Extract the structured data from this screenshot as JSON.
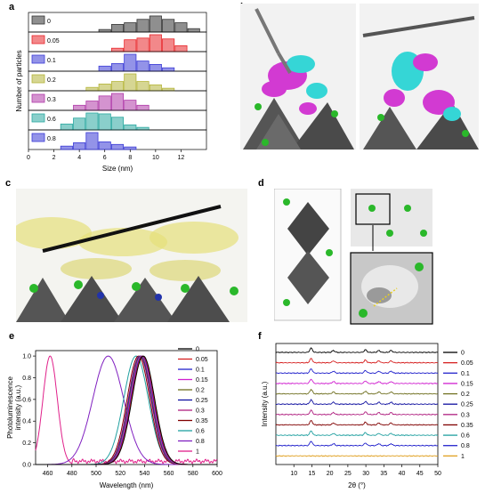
{
  "figure": {
    "panel_labels": {
      "a": "a",
      "b": "b",
      "c": "c",
      "d": "d",
      "e": "e",
      "f": "f"
    }
  },
  "chart_data": [
    {
      "id": "a",
      "type": "bar",
      "xlabel": "Size (nm)",
      "ylabel": "Number of particles",
      "xlim": [
        0,
        14
      ],
      "xticks": [
        "0",
        "2",
        "4",
        "6",
        "8",
        "10",
        "12"
      ],
      "series": [
        {
          "name": "0",
          "color": "#333333",
          "bins": [
            6,
            7,
            8,
            9,
            10,
            11,
            12,
            13
          ],
          "values": [
            0.15,
            0.45,
            0.55,
            0.75,
            0.95,
            0.75,
            0.55,
            0.2
          ]
        },
        {
          "name": "0.05",
          "color": "#e8262a",
          "bins": [
            7,
            8,
            9,
            10,
            11,
            12
          ],
          "values": [
            0.2,
            0.7,
            0.8,
            1.0,
            0.75,
            0.35
          ]
        },
        {
          "name": "0.1",
          "color": "#3b3bd6",
          "bins": [
            6,
            7,
            8,
            9,
            10,
            11
          ],
          "values": [
            0.3,
            0.45,
            1.0,
            0.6,
            0.4,
            0.2
          ]
        },
        {
          "name": "0.2",
          "color": "#b5b53a",
          "bins": [
            5,
            6,
            7,
            8,
            9,
            10,
            11
          ],
          "values": [
            0.2,
            0.4,
            0.55,
            1.0,
            0.55,
            0.35,
            0.15
          ]
        },
        {
          "name": "0.3",
          "color": "#b03aa8",
          "bins": [
            4,
            5,
            6,
            7,
            8,
            9
          ],
          "values": [
            0.3,
            0.55,
            0.85,
            1.0,
            0.6,
            0.3
          ]
        },
        {
          "name": "0.6",
          "color": "#2aa8a0",
          "bins": [
            3,
            4,
            5,
            6,
            7,
            8,
            9
          ],
          "values": [
            0.35,
            0.7,
            1.0,
            0.95,
            0.75,
            0.3,
            0.15
          ]
        },
        {
          "name": "0.8",
          "color": "#3b3bd6",
          "bins": [
            3,
            4,
            5,
            6,
            7,
            8
          ],
          "values": [
            0.2,
            0.4,
            1.0,
            0.45,
            0.3,
            0.15
          ]
        }
      ]
    },
    {
      "id": "e",
      "type": "line",
      "xlabel": "Wavelength (nm)",
      "ylabel": "Photoluminescence intensity (a.u.)",
      "xlim": [
        450,
        600
      ],
      "ylim": [
        0,
        1.05
      ],
      "xticks": [
        "460",
        "480",
        "500",
        "520",
        "540",
        "560",
        "580",
        "600"
      ],
      "yticks": [
        "0.0",
        "0.2",
        "0.4",
        "0.6",
        "0.8",
        "1.0"
      ],
      "series": [
        {
          "name": "0",
          "color": "#000000",
          "peak": 539,
          "fwhm": 22
        },
        {
          "name": "0.05",
          "color": "#d62020",
          "peak": 538.5,
          "fwhm": 22
        },
        {
          "name": "0.1",
          "color": "#2222cc",
          "peak": 538,
          "fwhm": 22
        },
        {
          "name": "0.15",
          "color": "#d020d0",
          "peak": 537.5,
          "fwhm": 22
        },
        {
          "name": "0.2",
          "color": "#707020",
          "peak": 537,
          "fwhm": 22
        },
        {
          "name": "0.25",
          "color": "#1010a0",
          "peak": 536.5,
          "fwhm": 22
        },
        {
          "name": "0.3",
          "color": "#b02080",
          "peak": 536,
          "fwhm": 22
        },
        {
          "name": "0.35",
          "color": "#800000",
          "peak": 535,
          "fwhm": 22
        },
        {
          "name": "0.6",
          "color": "#20a0a0",
          "peak": 533,
          "fwhm": 24
        },
        {
          "name": "0.8",
          "color": "#8020c0",
          "peak": 510,
          "fwhm": 30
        },
        {
          "name": "1",
          "color": "#e0208a",
          "peak": 462,
          "fwhm": 14
        }
      ]
    },
    {
      "id": "f",
      "type": "line",
      "xlabel": "2θ (°)",
      "ylabel": "Intensity (a.u.)",
      "xlim": [
        5,
        50
      ],
      "xticks": [
        "10",
        "15",
        "20",
        "25",
        "30",
        "35",
        "40",
        "45",
        "50"
      ],
      "peaks_2theta": [
        14.8,
        21.0,
        29.9,
        33.6,
        37.0
      ],
      "series": [
        {
          "name": "0",
          "color": "#000000"
        },
        {
          "name": "0.05",
          "color": "#d62020"
        },
        {
          "name": "0.1",
          "color": "#2222cc"
        },
        {
          "name": "0.15",
          "color": "#d020d0"
        },
        {
          "name": "0.2",
          "color": "#707020"
        },
        {
          "name": "0.25",
          "color": "#1010a0"
        },
        {
          "name": "0.3",
          "color": "#b02080"
        },
        {
          "name": "0.35",
          "color": "#800000"
        },
        {
          "name": "0.6",
          "color": "#20a0a0"
        },
        {
          "name": "0.8",
          "color": "#2222cc"
        },
        {
          "name": "1",
          "color": "#e0a020"
        }
      ]
    }
  ]
}
